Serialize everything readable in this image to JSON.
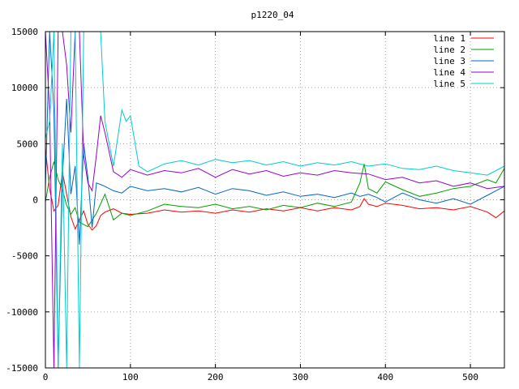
{
  "chart_data": {
    "type": "line",
    "title": "p1220_04",
    "xlabel": "",
    "ylabel": "",
    "xlim": [
      0,
      540
    ],
    "ylim": [
      -15000,
      15000
    ],
    "xticks": [
      0,
      100,
      200,
      300,
      400,
      500
    ],
    "yticks": [
      -15000,
      -10000,
      -5000,
      0,
      5000,
      10000,
      15000
    ],
    "grid": true,
    "legend_position": "top-right",
    "series": [
      {
        "name": "line 1",
        "color": "#ff0000",
        "x": [
          0,
          5,
          10,
          15,
          20,
          25,
          30,
          35,
          40,
          45,
          50,
          55,
          60,
          65,
          70,
          80,
          90,
          100,
          120,
          140,
          160,
          180,
          200,
          220,
          240,
          260,
          280,
          300,
          320,
          340,
          360,
          370,
          375,
          380,
          390,
          400,
          420,
          440,
          460,
          480,
          500,
          520,
          530,
          540
        ],
        "y": [
          4600,
          1000,
          -1000,
          -500,
          2500,
          500,
          -1500,
          -2600,
          -1800,
          -1000,
          -2200,
          -2700,
          -2300,
          -1400,
          -1100,
          -800,
          -1200,
          -1300,
          -1200,
          -900,
          -1100,
          -1000,
          -1200,
          -900,
          -1100,
          -800,
          -1000,
          -700,
          -1000,
          -700,
          -900,
          -600,
          100,
          -400,
          -600,
          -300,
          -500,
          -800,
          -700,
          -900,
          -600,
          -1100,
          -1600,
          -1000
        ]
      },
      {
        "name": "line 2",
        "color": "#00a000",
        "x": [
          0,
          5,
          10,
          15,
          20,
          25,
          30,
          35,
          40,
          50,
          60,
          70,
          80,
          90,
          100,
          120,
          140,
          160,
          180,
          200,
          220,
          240,
          260,
          280,
          300,
          320,
          340,
          360,
          370,
          375,
          380,
          390,
          400,
          420,
          440,
          460,
          480,
          500,
          520,
          530,
          540
        ],
        "y": [
          -200,
          2000,
          3400,
          1800,
          900,
          -500,
          -1300,
          -700,
          -2000,
          -2400,
          -1200,
          500,
          -1800,
          -1200,
          -1400,
          -1000,
          -400,
          -600,
          -700,
          -400,
          -800,
          -600,
          -900,
          -500,
          -700,
          -300,
          -600,
          -200,
          1500,
          3200,
          1000,
          600,
          1600,
          900,
          300,
          600,
          1000,
          1200,
          1800,
          1500,
          2800
        ]
      },
      {
        "name": "line 3",
        "color": "#0066cc",
        "x": [
          0,
          5,
          10,
          15,
          20,
          25,
          30,
          35,
          40,
          45,
          50,
          55,
          60,
          70,
          80,
          90,
          100,
          120,
          140,
          160,
          180,
          200,
          220,
          240,
          260,
          280,
          300,
          320,
          340,
          360,
          370,
          380,
          390,
          400,
          420,
          440,
          460,
          480,
          500,
          520,
          530,
          540
        ],
        "y": [
          1000,
          15000,
          8000,
          -15000,
          2000,
          9000,
          500,
          3000,
          -4000,
          5000,
          2000,
          -2500,
          1500,
          1200,
          800,
          600,
          1200,
          800,
          1000,
          700,
          1100,
          500,
          1000,
          800,
          400,
          700,
          300,
          500,
          200,
          600,
          300,
          500,
          200,
          -200,
          600,
          0,
          -300,
          100,
          -400,
          400,
          800,
          1200
        ]
      },
      {
        "name": "line 4",
        "color": "#9900cc",
        "x": [
          0,
          5,
          10,
          15,
          20,
          25,
          30,
          35,
          40,
          45,
          50,
          55,
          60,
          65,
          70,
          80,
          90,
          100,
          120,
          140,
          160,
          180,
          200,
          220,
          240,
          260,
          280,
          300,
          320,
          340,
          360,
          380,
          400,
          420,
          440,
          460,
          480,
          500,
          520,
          540
        ],
        "y": [
          15000,
          8000,
          -15000,
          15000,
          15000,
          12000,
          6000,
          15000,
          15000,
          4000,
          1500,
          800,
          4000,
          7500,
          6000,
          2500,
          2000,
          2700,
          2200,
          2600,
          2400,
          2800,
          2000,
          2700,
          2300,
          2600,
          2100,
          2400,
          2200,
          2600,
          2400,
          2300,
          1800,
          2000,
          1500,
          1700,
          1200,
          1500,
          1000,
          1200
        ]
      },
      {
        "name": "line 5",
        "color": "#00cccc",
        "x": [
          0,
          5,
          10,
          15,
          20,
          25,
          30,
          35,
          40,
          45,
          50,
          55,
          60,
          65,
          70,
          80,
          90,
          95,
          100,
          110,
          120,
          140,
          160,
          180,
          200,
          220,
          240,
          260,
          280,
          300,
          320,
          340,
          360,
          380,
          400,
          420,
          440,
          460,
          480,
          500,
          520,
          540
        ],
        "y": [
          5500,
          7000,
          15000,
          -15000,
          5000,
          -15000,
          15000,
          15000,
          -15000,
          15000,
          15000,
          15000,
          15000,
          15000,
          7000,
          3000,
          8000,
          7000,
          7500,
          3000,
          2500,
          3200,
          3500,
          3100,
          3600,
          3300,
          3500,
          3100,
          3400,
          3000,
          3300,
          3100,
          3400,
          3000,
          3200,
          2800,
          2700,
          3000,
          2600,
          2400,
          2200,
          3000
        ]
      }
    ]
  }
}
